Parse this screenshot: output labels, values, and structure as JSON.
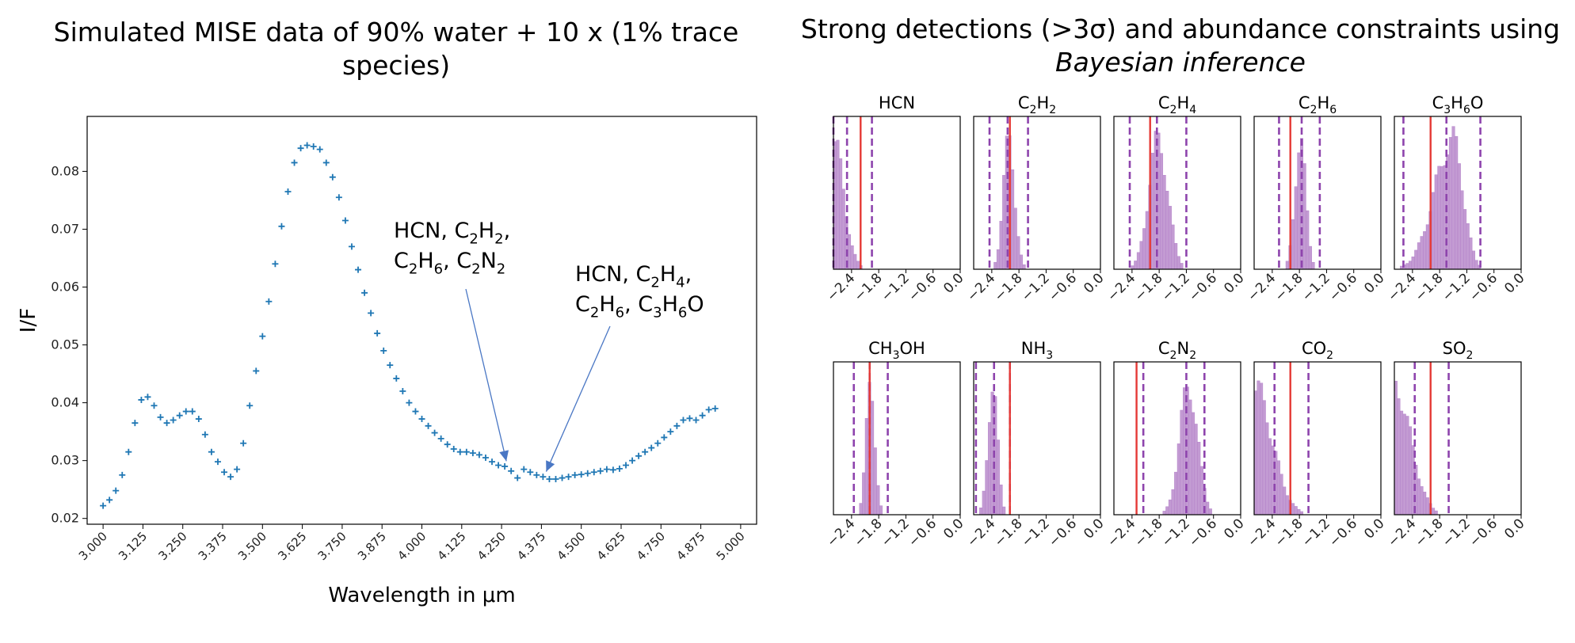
{
  "left_panel": {
    "title": "Simulated MISE data of 90% water + 10 x (1% trace species)"
  },
  "right_panel": {
    "title_line1": "Strong detections (>3σ) and abundance constraints using",
    "title_line2": "Bayesian inference"
  },
  "colors": {
    "spectrum": "#1f77b4",
    "histogram_fill": "#c39bd3",
    "histogram_edge": "#b07cc6",
    "dashed_line": "#8e44ad",
    "true_value_line": "#e53935",
    "annotation_arrow": "#4a77c4"
  },
  "chart_data": [
    {
      "type": "scatter",
      "title": "Simulated MISE data of 90% water + 10 x (1% trace species)",
      "xlabel": "Wavelength in μm",
      "ylabel": "I/F",
      "xlim": [
        2.95,
        5.05
      ],
      "ylim": [
        0.019,
        0.0895
      ],
      "x_ticks": [
        "3.000",
        "3.125",
        "3.250",
        "3.375",
        "3.500",
        "3.625",
        "3.750",
        "3.875",
        "4.000",
        "4.125",
        "4.250",
        "4.375",
        "4.500",
        "4.625",
        "4.750",
        "4.875",
        "5.000"
      ],
      "y_ticks": [
        "0.02",
        "0.03",
        "0.04",
        "0.05",
        "0.06",
        "0.07",
        "0.08"
      ],
      "marker": "+",
      "series": [
        {
          "points": [
            [
              3.0,
              0.0222
            ],
            [
              3.02,
              0.0232
            ],
            [
              3.04,
              0.0248
            ],
            [
              3.06,
              0.0275
            ],
            [
              3.08,
              0.0315
            ],
            [
              3.1,
              0.0365
            ],
            [
              3.12,
              0.0405
            ],
            [
              3.14,
              0.041
            ],
            [
              3.16,
              0.0395
            ],
            [
              3.18,
              0.0375
            ],
            [
              3.2,
              0.0365
            ],
            [
              3.22,
              0.037
            ],
            [
              3.24,
              0.0378
            ],
            [
              3.26,
              0.0385
            ],
            [
              3.28,
              0.0385
            ],
            [
              3.3,
              0.0372
            ],
            [
              3.32,
              0.0345
            ],
            [
              3.34,
              0.0315
            ],
            [
              3.36,
              0.0298
            ],
            [
              3.38,
              0.028
            ],
            [
              3.4,
              0.0272
            ],
            [
              3.42,
              0.0285
            ],
            [
              3.44,
              0.033
            ],
            [
              3.46,
              0.0395
            ],
            [
              3.48,
              0.0455
            ],
            [
              3.5,
              0.0515
            ],
            [
              3.52,
              0.0575
            ],
            [
              3.54,
              0.064
            ],
            [
              3.56,
              0.0705
            ],
            [
              3.58,
              0.0765
            ],
            [
              3.6,
              0.0815
            ],
            [
              3.62,
              0.084
            ],
            [
              3.64,
              0.0845
            ],
            [
              3.66,
              0.0843
            ],
            [
              3.68,
              0.0838
            ],
            [
              3.7,
              0.0815
            ],
            [
              3.72,
              0.079
            ],
            [
              3.74,
              0.0755
            ],
            [
              3.76,
              0.0715
            ],
            [
              3.78,
              0.067
            ],
            [
              3.8,
              0.063
            ],
            [
              3.82,
              0.059
            ],
            [
              3.84,
              0.0555
            ],
            [
              3.86,
              0.052
            ],
            [
              3.88,
              0.049
            ],
            [
              3.9,
              0.0465
            ],
            [
              3.92,
              0.0442
            ],
            [
              3.94,
              0.042
            ],
            [
              3.96,
              0.04
            ],
            [
              3.98,
              0.0385
            ],
            [
              4.0,
              0.0372
            ],
            [
              4.02,
              0.036
            ],
            [
              4.04,
              0.0348
            ],
            [
              4.06,
              0.0338
            ],
            [
              4.08,
              0.0328
            ],
            [
              4.1,
              0.032
            ],
            [
              4.12,
              0.0315
            ],
            [
              4.14,
              0.0315
            ],
            [
              4.16,
              0.0313
            ],
            [
              4.18,
              0.031
            ],
            [
              4.2,
              0.0305
            ],
            [
              4.22,
              0.0298
            ],
            [
              4.24,
              0.0292
            ],
            [
              4.26,
              0.029
            ],
            [
              4.28,
              0.0282
            ],
            [
              4.3,
              0.027
            ],
            [
              4.32,
              0.0285
            ],
            [
              4.34,
              0.028
            ],
            [
              4.36,
              0.0275
            ],
            [
              4.38,
              0.0272
            ],
            [
              4.4,
              0.0268
            ],
            [
              4.42,
              0.0268
            ],
            [
              4.44,
              0.027
            ],
            [
              4.46,
              0.0272
            ],
            [
              4.48,
              0.0275
            ],
            [
              4.5,
              0.0276
            ],
            [
              4.52,
              0.0278
            ],
            [
              4.54,
              0.028
            ],
            [
              4.56,
              0.0282
            ],
            [
              4.58,
              0.0285
            ],
            [
              4.6,
              0.0284
            ],
            [
              4.62,
              0.0286
            ],
            [
              4.64,
              0.0292
            ],
            [
              4.66,
              0.03
            ],
            [
              4.68,
              0.0308
            ],
            [
              4.7,
              0.0315
            ],
            [
              4.72,
              0.0322
            ],
            [
              4.74,
              0.033
            ],
            [
              4.76,
              0.034
            ],
            [
              4.78,
              0.035
            ],
            [
              4.8,
              0.036
            ],
            [
              4.82,
              0.037
            ],
            [
              4.84,
              0.0373
            ],
            [
              4.86,
              0.037
            ],
            [
              4.88,
              0.0378
            ],
            [
              4.9,
              0.0388
            ],
            [
              4.92,
              0.039
            ]
          ]
        }
      ],
      "annotations": [
        {
          "lines": [
            [
              "HCN, C",
              "2",
              "H",
              "2",
              ","
            ],
            [
              "C",
              "2",
              "H",
              "6",
              ", C",
              "2",
              "N",
              "2"
            ]
          ],
          "arrow_to": [
            4.265,
            0.0288
          ]
        },
        {
          "lines": [
            [
              "HCN, C",
              "2",
              "H",
              "4",
              ","
            ],
            [
              "C",
              "2",
              "H",
              "6",
              ", C",
              "3",
              "H",
              "6",
              "O"
            ]
          ],
          "arrow_to": [
            4.39,
            0.027
          ]
        }
      ]
    },
    {
      "type": "bar",
      "title": "Strong detections (>3σ) and abundance constraints using Bayesian inference",
      "xlim": [
        -2.8,
        0.0
      ],
      "x_ticks": [
        "−2.4",
        "−1.8",
        "−1.2",
        "−0.6",
        "0.0"
      ],
      "panels": [
        {
          "label": [
            "HCN"
          ],
          "true_value": -2.2,
          "dashed": [
            -2.8,
            -2.5,
            -1.95
          ],
          "peak": -2.8,
          "shape": "edge_decay",
          "width": 0.35
        },
        {
          "label": [
            "C",
            "2",
            "H",
            "2"
          ],
          "true_value": -2.0,
          "dashed": [
            -2.45,
            -2.05,
            -1.6
          ],
          "peak": -2.02,
          "shape": "gauss",
          "width": 0.18
        },
        {
          "label": [
            "C",
            "2",
            "H",
            "4"
          ],
          "true_value": -2.0,
          "dashed": [
            -2.45,
            -1.85,
            -1.2
          ],
          "peak": -1.82,
          "shape": "gauss",
          "width": 0.3
        },
        {
          "label": [
            "C",
            "2",
            "H",
            "6"
          ],
          "true_value": -2.0,
          "dashed": [
            -2.25,
            -1.75,
            -1.35
          ],
          "peak": -1.78,
          "shape": "gauss",
          "width": 0.17
        },
        {
          "label": [
            "C",
            "3",
            "H",
            "6",
            "O"
          ],
          "true_value": -2.0,
          "dashed": [
            -2.6,
            -1.65,
            -0.9
          ],
          "peak": -1.5,
          "shape": "skew_left",
          "width": 0.45
        },
        {
          "label": [
            "CH",
            "3",
            "OH"
          ],
          "true_value": -2.0,
          "dashed": [
            -2.35,
            -2.0,
            -1.6
          ],
          "peak": -1.98,
          "shape": "gauss",
          "width": 0.14
        },
        {
          "label": [
            "NH",
            "3"
          ],
          "true_value": -2.0,
          "dashed": [
            -2.75,
            -2.35,
            -2.0
          ],
          "peak": -2.38,
          "shape": "gauss",
          "width": 0.15
        },
        {
          "label": [
            "C",
            "2",
            "N",
            "2"
          ],
          "true_value": -2.3,
          "dashed": [
            -2.15,
            -1.2,
            -0.8
          ],
          "peak": -1.15,
          "shape": "gauss",
          "width": 0.28
        },
        {
          "label": [
            "CO",
            "2"
          ],
          "true_value": -2.0,
          "dashed": [
            -2.35,
            -1.6
          ],
          "peak": -2.8,
          "shape": "edge_decay",
          "width": 0.6
        },
        {
          "label": [
            "SO",
            "2"
          ],
          "true_value": -2.0,
          "dashed": [
            -2.35,
            -1.6
          ],
          "peak": -2.8,
          "shape": "edge_decay",
          "width": 0.55
        }
      ]
    }
  ]
}
